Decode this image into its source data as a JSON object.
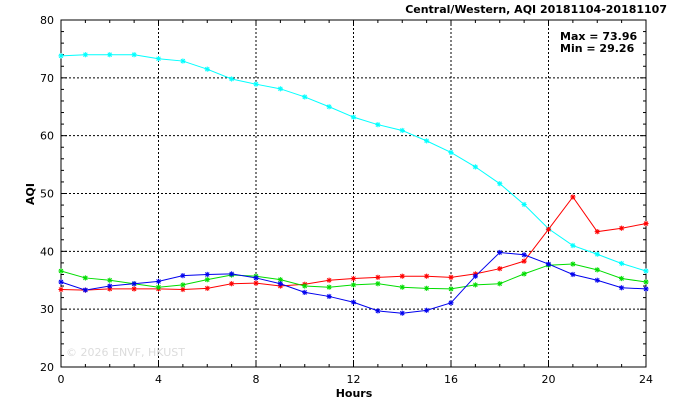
{
  "chart_data": {
    "type": "line",
    "title": "Central/Western, AQI 20181104-20181107",
    "xlabel": "Hours",
    "ylabel": "AQI",
    "xlim": [
      0,
      24
    ],
    "ylim": [
      20,
      80
    ],
    "xticks": [
      0,
      4,
      8,
      12,
      16,
      20,
      24
    ],
    "yticks": [
      20,
      30,
      40,
      50,
      60,
      70,
      80
    ],
    "grid": true,
    "stats": {
      "max_text": "Max = 73.96",
      "min_text": "Min = 29.26"
    },
    "watermark": "© 2026  ENVF, HKUST",
    "x": [
      0,
      1,
      2,
      3,
      4,
      5,
      6,
      7,
      8,
      9,
      10,
      11,
      12,
      13,
      14,
      15,
      16,
      17,
      18,
      19,
      20,
      21,
      22,
      23,
      24
    ],
    "series": [
      {
        "color": "#00ffff",
        "values": [
          73.8,
          74.0,
          74.0,
          74.0,
          73.3,
          72.9,
          71.5,
          69.8,
          68.9,
          68.1,
          66.7,
          65.0,
          63.2,
          61.9,
          60.9,
          59.1,
          57.1,
          54.6,
          51.7,
          48.1,
          43.9,
          41.0,
          39.5,
          37.9,
          36.6
        ]
      },
      {
        "color": "#ff0000",
        "values": [
          33.4,
          33.3,
          33.5,
          33.5,
          33.5,
          33.4,
          33.6,
          34.4,
          34.5,
          34.0,
          34.3,
          35.0,
          35.3,
          35.5,
          35.7,
          35.7,
          35.5,
          36.1,
          37.0,
          38.3,
          43.8,
          49.4,
          43.4,
          44.0,
          44.8
        ]
      },
      {
        "color": "#00dd00",
        "values": [
          36.6,
          35.4,
          35.0,
          34.4,
          33.8,
          34.2,
          35.1,
          35.9,
          35.7,
          35.1,
          34.0,
          33.8,
          34.2,
          34.4,
          33.8,
          33.6,
          33.5,
          34.2,
          34.4,
          36.1,
          37.6,
          37.8,
          36.8,
          35.3,
          34.7
        ]
      },
      {
        "color": "#0000ee",
        "values": [
          34.7,
          33.3,
          34.0,
          34.4,
          34.8,
          35.8,
          36.0,
          36.1,
          35.4,
          34.4,
          32.9,
          32.2,
          31.2,
          29.7,
          29.3,
          29.8,
          31.1,
          35.7,
          39.8,
          39.4,
          37.8,
          36.0,
          35.0,
          33.7,
          33.5
        ]
      }
    ]
  }
}
